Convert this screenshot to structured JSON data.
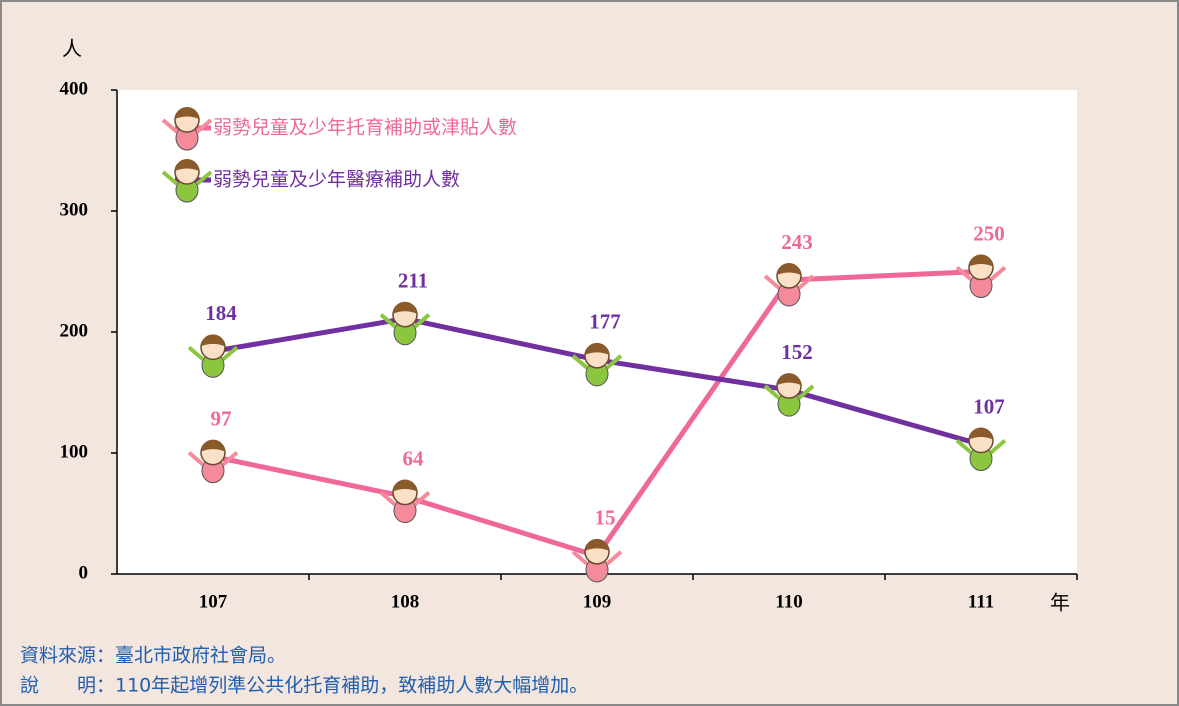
{
  "chart_data": {
    "type": "line",
    "y_label": "人",
    "x_label": "年",
    "categories": [
      "107",
      "108",
      "109",
      "110",
      "111"
    ],
    "series": [
      {
        "name": "弱勢兒童及少年托育補助或津貼人數",
        "color": "#f0679a",
        "values": [
          97,
          64,
          15,
          243,
          250
        ]
      },
      {
        "name": "弱勢兒童及少年醫療補助人數",
        "color": "#7030a0",
        "values": [
          184,
          211,
          177,
          152,
          107
        ]
      }
    ],
    "ylim": [
      0,
      400
    ],
    "yticks": [
      0,
      100,
      200,
      300,
      400
    ],
    "grid": false,
    "legend": "upper left"
  },
  "notes": [
    "資料來源：臺北市政府社會局。",
    "說　　明：110年起增列準公共化托育補助，致補助人數大幅增加。"
  ]
}
